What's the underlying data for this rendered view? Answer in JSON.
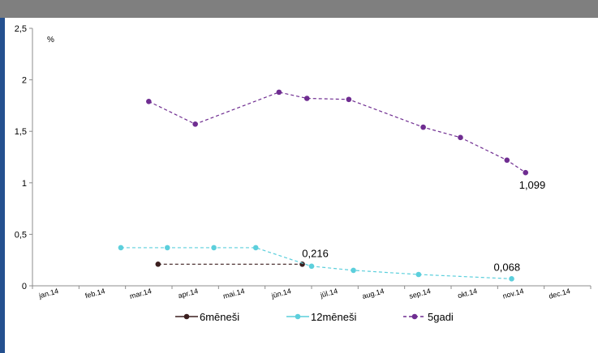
{
  "chart_data": {
    "type": "line",
    "unit_label": "%",
    "categories": [
      "jan.14",
      "feb.14",
      "mar.14",
      "apr.14",
      "mai.14",
      "jūn.14",
      "jūl.14",
      "aug.14",
      "sep.14",
      "okt.14",
      "nov.14",
      "dec.14"
    ],
    "ylim": [
      0,
      2.5
    ],
    "yticks": [
      "0",
      "0,5",
      "1",
      "1,5",
      "2",
      "2,5"
    ],
    "grid": false,
    "legend_position": "bottom",
    "series": [
      {
        "name": "6mēneši",
        "color": "#3b1f1f",
        "dashed": true,
        "points": [
          [
            2.2,
            0.21
          ],
          [
            5.3,
            0.21
          ]
        ],
        "label": ""
      },
      {
        "name": "12mēneši",
        "color": "#5ccfdc",
        "dashed": true,
        "points": [
          [
            1.4,
            0.37
          ],
          [
            2.4,
            0.37
          ],
          [
            3.4,
            0.37
          ],
          [
            4.3,
            0.37
          ],
          [
            5.5,
            0.19
          ],
          [
            6.4,
            0.15
          ],
          [
            7.8,
            0.11
          ],
          [
            9.8,
            0.068
          ]
        ],
        "label": "0,068",
        "annotation": {
          "at": [
            5.4,
            0.216
          ],
          "text": "0,216"
        }
      },
      {
        "name": "5gadi",
        "color": "#6f2d91",
        "dashed": true,
        "points": [
          [
            2.0,
            1.79
          ],
          [
            3.0,
            1.57
          ],
          [
            4.8,
            1.88
          ],
          [
            5.4,
            1.82
          ],
          [
            6.3,
            1.81
          ],
          [
            7.9,
            1.54
          ],
          [
            8.7,
            1.44
          ],
          [
            9.7,
            1.22
          ],
          [
            10.1,
            1.099
          ]
        ],
        "label": "1,099"
      }
    ]
  }
}
